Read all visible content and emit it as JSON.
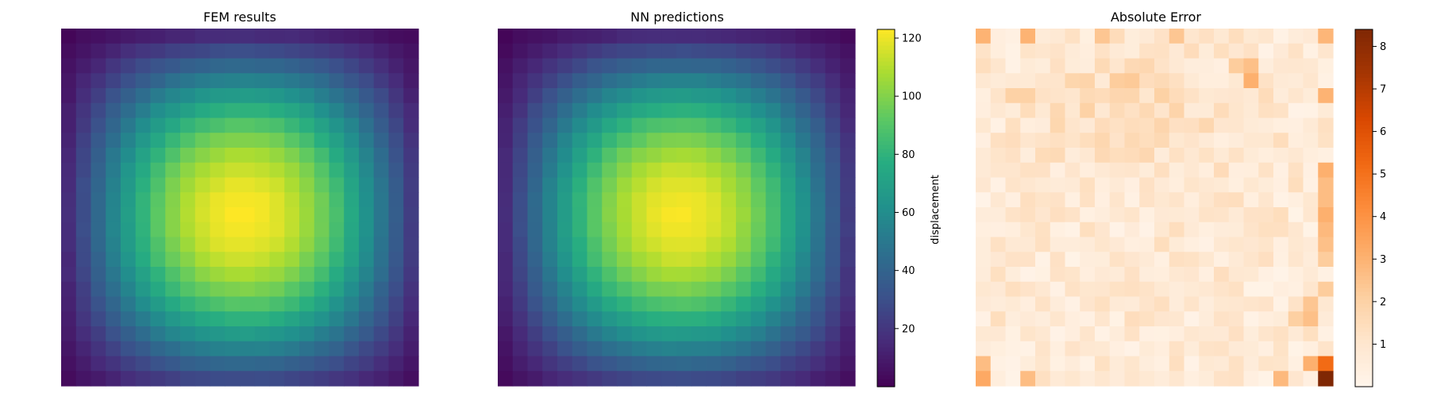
{
  "chart_data": [
    {
      "type": "heatmap",
      "title": "FEM results",
      "grid": [
        24,
        24
      ],
      "colormap": "viridis",
      "vmin": 0,
      "vmax": 123,
      "field": {
        "model": "separable sine product",
        "peak": 123,
        "peak_cell": [
          11.5,
          12.0
        ],
        "x_span": [
          -1.5,
          25.0
        ],
        "y_span": [
          -1.5,
          25.5
        ]
      },
      "axes": "off"
    },
    {
      "type": "heatmap",
      "title": "NN predictions",
      "grid": [
        24,
        24
      ],
      "colormap": "viridis",
      "vmin": 0,
      "vmax": 123,
      "field": {
        "model": "separable sine product",
        "peak": 122,
        "peak_cell": [
          11.5,
          12.0
        ],
        "x_span": [
          -1.5,
          25.0
        ],
        "y_span": [
          -1.5,
          25.5
        ]
      },
      "axes": "off",
      "colorbar": {
        "label": "displacement",
        "range": [
          0,
          123
        ],
        "ticks": [
          20,
          40,
          60,
          80,
          100,
          120
        ],
        "tick_labels": [
          "20",
          "40",
          "60",
          "80",
          "100",
          "120"
        ]
      }
    },
    {
      "type": "heatmap",
      "title": "Absolute Error",
      "grid": [
        24,
        24
      ],
      "colormap": "oranges",
      "vmin": 0,
      "vmax": 8.4,
      "field": {
        "background_max": 1.9,
        "hotspots": [
          {
            "row": 23,
            "col": 23,
            "value": 8.4
          },
          {
            "row": 22,
            "col": 23,
            "value": 5.2
          },
          {
            "row": 22,
            "col": 22,
            "value": 3.1
          },
          {
            "row": 23,
            "col": 0,
            "value": 3.3
          },
          {
            "row": 22,
            "col": 0,
            "value": 2.7
          },
          {
            "row": 23,
            "col": 3,
            "value": 2.7
          },
          {
            "row": 23,
            "col": 20,
            "value": 2.8
          },
          {
            "row": 0,
            "col": 0,
            "value": 3.0
          },
          {
            "row": 0,
            "col": 3,
            "value": 3.0
          },
          {
            "row": 0,
            "col": 23,
            "value": 2.9
          },
          {
            "row": 0,
            "col": 8,
            "value": 2.4
          },
          {
            "row": 0,
            "col": 13,
            "value": 2.4
          },
          {
            "row": 3,
            "col": 18,
            "value": 3.1
          },
          {
            "row": 2,
            "col": 18,
            "value": 2.6
          },
          {
            "row": 4,
            "col": 23,
            "value": 3.0
          },
          {
            "row": 9,
            "col": 23,
            "value": 3.1
          },
          {
            "row": 10,
            "col": 23,
            "value": 2.7
          },
          {
            "row": 11,
            "col": 23,
            "value": 2.7
          },
          {
            "row": 12,
            "col": 23,
            "value": 3.1
          },
          {
            "row": 13,
            "col": 23,
            "value": 2.8
          },
          {
            "row": 14,
            "col": 23,
            "value": 2.6
          },
          {
            "row": 15,
            "col": 23,
            "value": 2.2
          },
          {
            "row": 17,
            "col": 23,
            "value": 2.2
          },
          {
            "row": 18,
            "col": 22,
            "value": 2.4
          },
          {
            "row": 19,
            "col": 22,
            "value": 2.6
          },
          {
            "row": 19,
            "col": 21,
            "value": 2.1
          },
          {
            "row": 3,
            "col": 9,
            "value": 2.2
          },
          {
            "row": 3,
            "col": 10,
            "value": 2.3
          },
          {
            "row": 2,
            "col": 17,
            "value": 2.2
          },
          {
            "row": 4,
            "col": 2,
            "value": 2.0
          },
          {
            "row": 4,
            "col": 3,
            "value": 2.0
          }
        ]
      },
      "axes": "off",
      "colorbar": {
        "range": [
          0,
          8.4
        ],
        "ticks": [
          1,
          2,
          3,
          4,
          5,
          6,
          7,
          8
        ],
        "tick_labels": [
          "1",
          "2",
          "3",
          "4",
          "5",
          "6",
          "7",
          "8"
        ]
      }
    }
  ]
}
